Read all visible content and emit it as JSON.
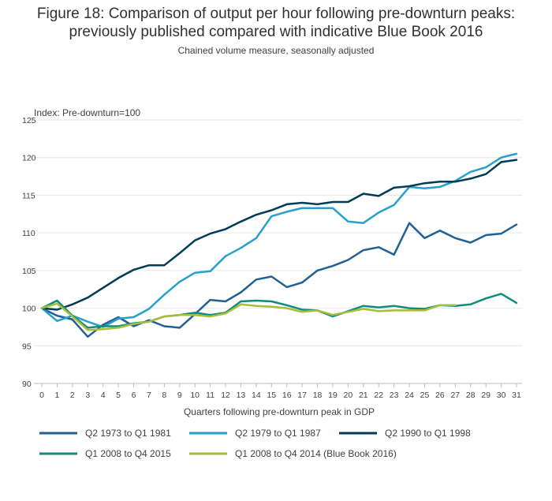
{
  "chart_data": {
    "type": "line",
    "title": "Figure 18: Comparison of output per hour following pre-downturn peaks: previously published compared with indicative Blue Book 2016",
    "title_line1": "Figure 18: Comparison of output per hour following pre-downturn peaks:",
    "title_line2": "previously published compared with indicative Blue Book 2016",
    "subtitle": "Chained volume measure, seasonally adjusted",
    "ylabel": "Index: Pre-downturn=100",
    "xlabel": "Quarters following pre-downturn peak in GDP",
    "ylim": [
      90,
      125
    ],
    "yticks": [
      90,
      95,
      100,
      105,
      110,
      115,
      120,
      125
    ],
    "x": [
      0,
      1,
      2,
      3,
      4,
      5,
      6,
      7,
      8,
      9,
      10,
      11,
      12,
      13,
      14,
      15,
      16,
      17,
      18,
      19,
      20,
      21,
      22,
      23,
      24,
      25,
      26,
      27,
      28,
      29,
      30,
      31
    ],
    "grid": "horizontal",
    "legend_position": "bottom",
    "series": [
      {
        "name": "Q2 1973 to Q1 1981",
        "color": "#206095",
        "values": [
          100,
          99.0,
          98.5,
          96.2,
          97.8,
          98.8,
          97.6,
          98.4,
          97.6,
          97.4,
          99.2,
          101.1,
          100.9,
          102.1,
          103.8,
          104.2,
          102.8,
          103.4,
          105.0,
          105.6,
          106.4,
          107.7,
          108.1,
          107.1,
          111.3,
          109.3,
          110.3,
          109.3,
          108.7,
          109.7,
          109.9,
          111.1
        ]
      },
      {
        "name": "Q2 1979 to Q1 1987",
        "color": "#27a0cc",
        "values": [
          100,
          98.3,
          99.0,
          98.2,
          97.5,
          98.6,
          98.8,
          99.9,
          101.8,
          103.5,
          104.7,
          104.9,
          106.9,
          108.0,
          109.3,
          112.2,
          112.8,
          113.3,
          113.3,
          113.3,
          111.5,
          111.3,
          112.7,
          113.7,
          116.1,
          115.9,
          116.1,
          116.9,
          118.1,
          118.7,
          120.0,
          120.5
        ]
      },
      {
        "name": "Q2 1990 to Q1 1998",
        "color": "#003c57",
        "values": [
          100,
          99.8,
          100.5,
          101.4,
          102.7,
          104.0,
          105.1,
          105.7,
          105.7,
          107.3,
          109.0,
          109.9,
          110.5,
          111.5,
          112.4,
          113.0,
          113.8,
          114.0,
          113.8,
          114.1,
          114.1,
          115.2,
          114.9,
          116.0,
          116.2,
          116.6,
          116.8,
          116.8,
          117.2,
          117.8,
          119.4,
          119.7
        ]
      },
      {
        "name": "Q1 2008 to Q4 2015",
        "color": "#118c7b",
        "values": [
          100,
          101.0,
          99.0,
          97.4,
          97.6,
          97.6,
          98.0,
          98.2,
          98.9,
          99.1,
          99.4,
          99.1,
          99.4,
          100.9,
          101.0,
          100.9,
          100.4,
          99.8,
          99.7,
          98.9,
          99.6,
          100.3,
          100.1,
          100.3,
          100.0,
          99.9,
          100.4,
          100.3,
          100.5,
          101.3,
          101.9,
          100.7
        ]
      },
      {
        "name": "Q1 2008 to Q4 2014 (Blue Book 2016)",
        "color": "#a8bd3a",
        "values": [
          100,
          100.6,
          98.9,
          97.1,
          97.2,
          97.4,
          97.9,
          98.2,
          98.9,
          99.1,
          99.1,
          98.9,
          99.3,
          100.5,
          100.3,
          100.2,
          100.0,
          99.5,
          99.7,
          99.1,
          99.5,
          99.9,
          99.6,
          99.7,
          99.7,
          99.7,
          100.4,
          100.4,
          null,
          null,
          null,
          null
        ]
      }
    ]
  }
}
